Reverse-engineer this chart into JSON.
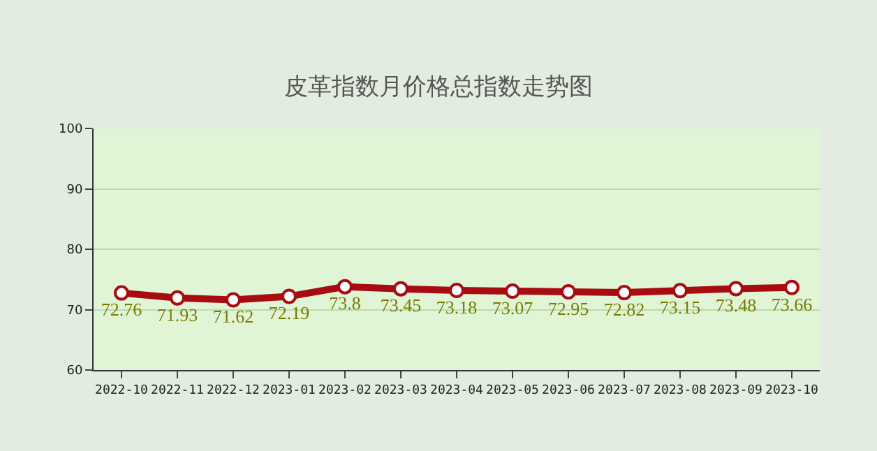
{
  "chart_data": {
    "type": "line",
    "title": "皮革指数月价格总指数走势图",
    "categories": [
      "2022-10",
      "2022-11",
      "2022-12",
      "2023-01",
      "2023-02",
      "2023-03",
      "2023-04",
      "2023-05",
      "2023-06",
      "2023-07",
      "2023-08",
      "2023-09",
      "2023-10"
    ],
    "series": [
      {
        "color": "#a80c10",
        "values": [
          72.76,
          71.93,
          71.62,
          72.19,
          73.8,
          73.45,
          73.18,
          73.07,
          72.95,
          72.82,
          73.15,
          73.48,
          73.66
        ]
      }
    ],
    "ylim": [
      60,
      100
    ],
    "yticks": [
      60,
      70,
      80,
      90,
      100
    ],
    "grid": "y",
    "marker": "circle",
    "line_style": "solid",
    "data_labels": true,
    "legend": false
  }
}
